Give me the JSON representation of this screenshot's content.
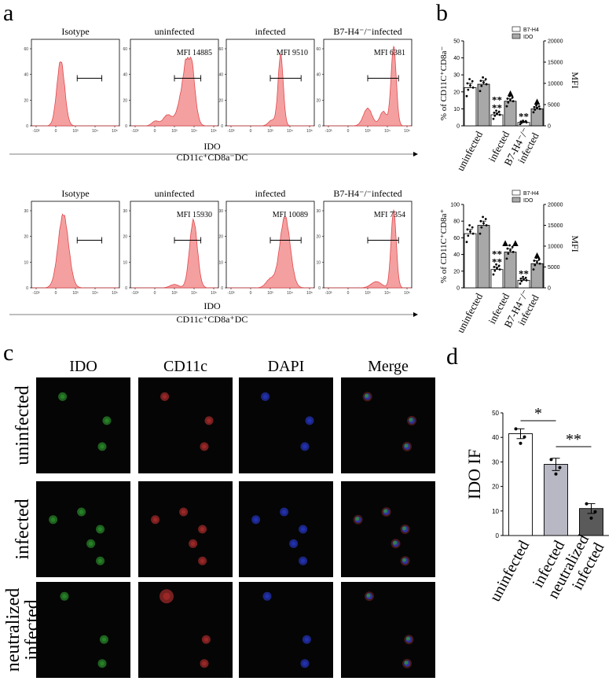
{
  "panel_labels": {
    "a": "a",
    "b": "b",
    "c": "c",
    "d": "d"
  },
  "colors": {
    "hist_fill": "#f4a0a0",
    "hist_line": "#e0484c",
    "bar_dark": "#a8a8a8",
    "bar_white": "#ffffff",
    "bar_d_light": "#b8b8c4",
    "bar_d_dark": "#5a5a5a"
  },
  "panel_a": {
    "y_ticks": [
      "0",
      "20",
      "40",
      "60"
    ],
    "y_ticks_row2": [
      "0",
      "10",
      "20",
      "30"
    ],
    "x_ticks": [
      "-10³",
      "0",
      "10³",
      "10⁴",
      "10⁵"
    ],
    "rows": [
      {
        "xlabel": "IDO",
        "subtitle": "CD11c⁺CD8a⁻DC",
        "panels": [
          {
            "title": "Isotype",
            "mfi": ""
          },
          {
            "title": "uninfected",
            "mfi": "MFI 14885"
          },
          {
            "title": "infected",
            "mfi": "MFI 9510"
          },
          {
            "title": "B7-H4⁻/⁻infected",
            "mfi": "MFI 6381"
          }
        ]
      },
      {
        "xlabel": "IDO",
        "subtitle": "CD11c⁺CD8a⁺DC",
        "panels": [
          {
            "title": "Isotype",
            "mfi": ""
          },
          {
            "title": "uninfected",
            "mfi": "MFI 15930"
          },
          {
            "title": "infected",
            "mfi": "MFI 10089"
          },
          {
            "title": "B7-H4⁻/⁻infected",
            "mfi": "MFI 7354"
          }
        ]
      }
    ]
  },
  "panel_c": {
    "columns": [
      "IDO",
      "CD11c",
      "DAPI",
      "Merge"
    ],
    "rows": [
      "uninfected",
      "infected",
      "neutralized\ninfected"
    ]
  },
  "chart_data": [
    {
      "type": "bar",
      "panel": "b-top",
      "ylabel": "% of CD11C⁺CD8a⁻",
      "y2label": "MFI",
      "categories": [
        "uninfected",
        "infected",
        "B7-H4⁻/⁻\ninfected"
      ],
      "ylim": [
        0,
        50
      ],
      "y_ticks": [
        0,
        10,
        20,
        30,
        40,
        50
      ],
      "y2lim": [
        0,
        20000
      ],
      "y2_ticks": [
        0,
        5000,
        10000,
        15000,
        20000
      ],
      "legend": [
        "B7-H4",
        "IDO"
      ],
      "series": [
        {
          "name": "B7-H4",
          "axis": "left",
          "values": [
            22.5,
            6.5,
            2.0
          ],
          "errors": [
            2.5,
            1.2,
            0.5
          ]
        },
        {
          "name": "IDO",
          "axis": "right",
          "values": [
            9800,
            5800,
            4000
          ],
          "errors": [
            800,
            600,
            400
          ]
        }
      ],
      "significance": [
        "",
        "**\n**",
        "**"
      ],
      "markers": [
        "",
        "▲",
        "▲"
      ]
    },
    {
      "type": "bar",
      "panel": "b-bottom",
      "ylabel": "% of CD11C⁺CD8a⁺",
      "y2label": "MFI",
      "categories": [
        "uninfected",
        "infected",
        "B7-H4⁻/⁻\ninfected"
      ],
      "ylim": [
        0,
        100
      ],
      "y_ticks": [
        0,
        20,
        40,
        60,
        80,
        100
      ],
      "y2lim": [
        0,
        20000
      ],
      "y2_ticks": [
        0,
        5000,
        10000,
        15000,
        20000
      ],
      "legend": [
        "B7-H4",
        "IDO"
      ],
      "series": [
        {
          "name": "B7-H4",
          "axis": "left",
          "values": [
            65,
            22,
            9
          ],
          "errors": [
            5,
            3,
            2
          ]
        },
        {
          "name": "IDO",
          "axis": "right",
          "values": [
            15000,
            8600,
            5800
          ],
          "errors": [
            1000,
            800,
            700
          ]
        }
      ],
      "significance": [
        "",
        "**\n**",
        "**"
      ],
      "markers": [
        "",
        "▲▲",
        "▲"
      ]
    },
    {
      "type": "bar",
      "panel": "d",
      "ylabel": "IDO IF",
      "categories": [
        "uninfected",
        "infected",
        "neutralized\ninfected"
      ],
      "values": [
        41.5,
        29,
        11
      ],
      "errors": [
        2,
        2.5,
        2
      ],
      "ylim": [
        0,
        50
      ],
      "y_ticks": [
        0,
        10,
        20,
        30,
        40,
        50
      ],
      "brackets": [
        {
          "from": 0,
          "to": 1,
          "label": "*"
        },
        {
          "from": 1,
          "to": 2,
          "label": "**"
        }
      ]
    }
  ]
}
